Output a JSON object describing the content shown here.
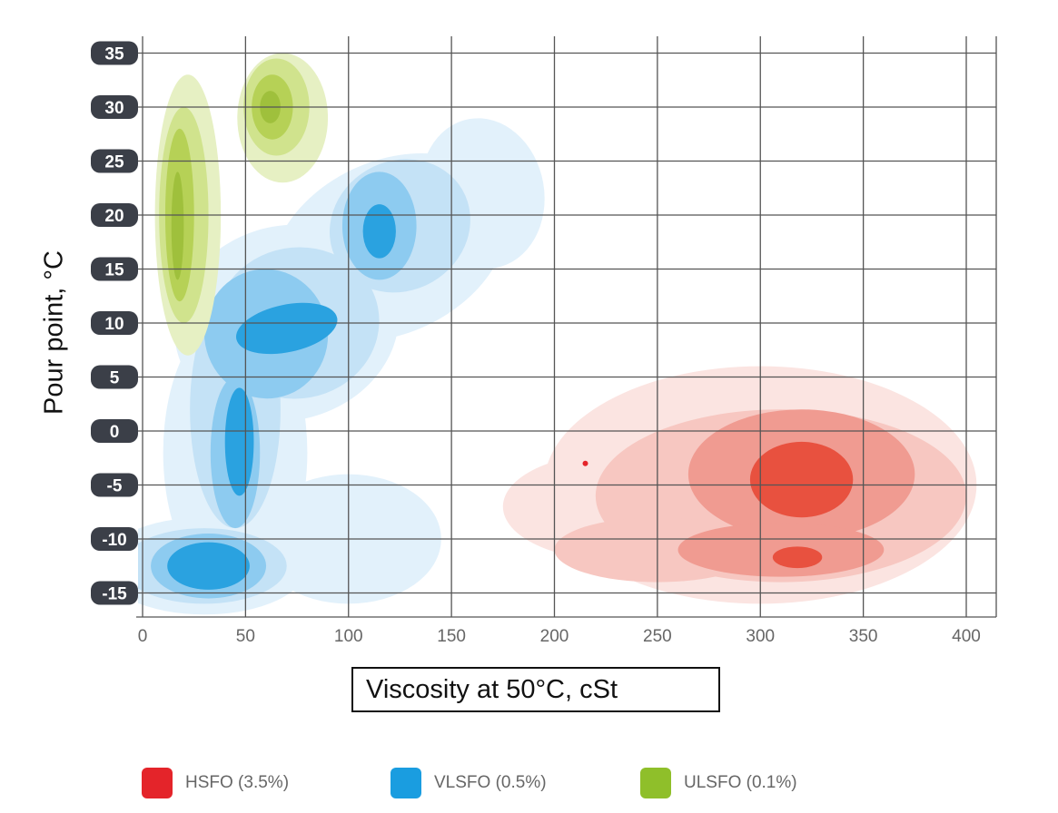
{
  "chart_data": {
    "type": "heatmap",
    "subtype": "density-contour",
    "xlabel": "Viscosity at 50°C, cSt",
    "ylabel": "Pour point, °C",
    "xlim": [
      0,
      400
    ],
    "ylim": [
      -15,
      35
    ],
    "xticks": [
      "0",
      "50",
      "100",
      "150",
      "200",
      "250",
      "300",
      "350",
      "400"
    ],
    "yticks": [
      "35",
      "30",
      "25",
      "20",
      "15",
      "10",
      "5",
      "0",
      "-5",
      "-10",
      "-15"
    ],
    "grid": true,
    "legend_position": "bottom",
    "series": [
      {
        "name": "VLSFO (0.5%)",
        "color": "#1a9de0",
        "level_colors": [
          "#e2f1fb",
          "#c4e2f6",
          "#8dcbf0",
          "#2aa2e0"
        ],
        "contours": [
          [
            [
              30,
              -12.5,
              50,
              4.5,
              0
            ],
            [
              45,
              -2,
              35,
              13,
              0
            ],
            [
              70,
              10,
              55,
              9,
              -15
            ],
            [
              120,
              17,
              60,
              8,
              -25
            ],
            [
              165,
              22,
              30,
              7,
              -10
            ],
            [
              100,
              -10,
              45,
              6,
              0
            ]
          ],
          [
            [
              30,
              -12.5,
              40,
              3.5,
              0
            ],
            [
              45,
              2,
              22,
              11,
              0
            ],
            [
              75,
              10,
              40,
              7,
              -10
            ],
            [
              125,
              19,
              35,
              6,
              -30
            ]
          ],
          [
            [
              32,
              -12.5,
              28,
              3,
              0
            ],
            [
              60,
              9,
              30,
              6,
              -10
            ],
            [
              45,
              -2,
              12,
              7,
              0
            ],
            [
              115,
              19,
              18,
              5,
              0
            ]
          ],
          [
            [
              32,
              -12.5,
              20,
              2.2,
              0
            ],
            [
              70,
              9.5,
              25,
              2.2,
              -12
            ],
            [
              47,
              -1,
              7,
              5,
              0
            ],
            [
              115,
              18.5,
              8,
              2.5,
              0
            ]
          ]
        ]
      },
      {
        "name": "ULSFO (0.1%)",
        "color": "#8fbf2a",
        "level_colors": [
          "#e6f0c3",
          "#d0e38d",
          "#b6d156",
          "#9fc03c"
        ],
        "contours": [
          [
            [
              22,
              20,
              16,
              13,
              0
            ],
            [
              68,
              29,
              22,
              6,
              0
            ]
          ],
          [
            [
              20,
              20,
              12,
              10,
              0
            ],
            [
              65,
              30,
              16,
              4.5,
              0
            ]
          ],
          [
            [
              18,
              20,
              7,
              8,
              0
            ],
            [
              63,
              30,
              10,
              3,
              0
            ]
          ],
          [
            [
              17,
              19,
              3,
              5,
              0
            ],
            [
              62,
              30,
              5,
              1.5,
              0
            ]
          ]
        ]
      },
      {
        "name": "HSFO (3.5%)",
        "color": "#e4242a",
        "level_colors": [
          "#fbe4e1",
          "#f7c7c1",
          "#f09b91",
          "#e8513f"
        ],
        "contours": [
          [
            [
              300,
              -5,
              105,
              11,
              0
            ],
            [
              230,
              -7,
              55,
              5,
              0
            ]
          ],
          [
            [
              310,
              -6,
              90,
              8,
              0
            ],
            [
              250,
              -11,
              50,
              3,
              0
            ]
          ],
          [
            [
              320,
              -4,
              55,
              6,
              0
            ],
            [
              310,
              -11,
              50,
              2.5,
              0
            ]
          ],
          [
            [
              320,
              -4.5,
              25,
              3.5,
              0
            ],
            [
              318,
              -11.7,
              12,
              1,
              0
            ]
          ]
        ]
      }
    ],
    "annotation_points": [
      [
        215,
        -3
      ]
    ]
  },
  "legend": [
    {
      "label": "HSFO (3.5%)",
      "color": "#e4242a"
    },
    {
      "label": "VLSFO (0.5%)",
      "color": "#1a9de0"
    },
    {
      "label": "ULSFO (0.1%)",
      "color": "#8fbf2a"
    }
  ]
}
